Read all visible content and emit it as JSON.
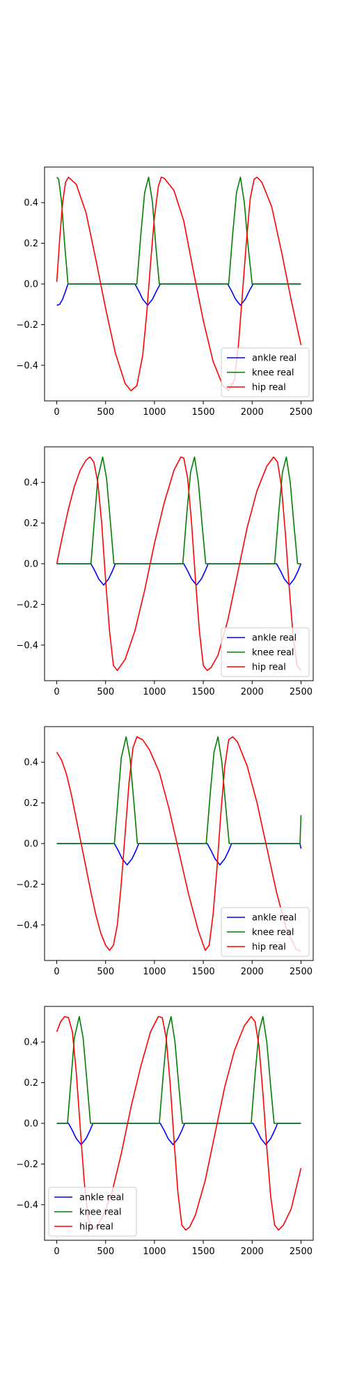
{
  "chart_data": [
    {
      "type": "line",
      "title": "",
      "xlabel": "",
      "ylabel": "",
      "xlim": [
        -125,
        2625
      ],
      "ylim": [
        -0.575,
        0.575
      ],
      "x_ticks": [
        0,
        500,
        1000,
        1500,
        2000,
        2500
      ],
      "y_ticks": [
        -0.4,
        -0.2,
        0.0,
        0.2,
        0.4
      ],
      "grid": false,
      "legend": {
        "placement": "lower right",
        "entries": [
          "ankle real",
          "knee real",
          "hip real"
        ]
      },
      "series": [
        {
          "name": "ankle real",
          "color": "#0000ff",
          "x": [
            0,
            30,
            60,
            90,
            115,
            120,
            800,
            840,
            880,
            930,
            980,
            1020,
            1060,
            1065,
            1750,
            1790,
            1830,
            1880,
            1930,
            1970,
            2010,
            2015,
            2500
          ],
          "y": [
            -0.105,
            -0.1,
            -0.075,
            -0.035,
            0.0,
            0.0,
            0.0,
            -0.035,
            -0.075,
            -0.105,
            -0.075,
            -0.035,
            0.0,
            0.0,
            0.0,
            -0.035,
            -0.075,
            -0.105,
            -0.075,
            -0.035,
            0.0,
            0.0,
            0.0
          ]
        },
        {
          "name": "knee real",
          "color": "#008000",
          "x": [
            0,
            20,
            50,
            80,
            115,
            120,
            820,
            860,
            900,
            940,
            980,
            1015,
            1050,
            1055,
            1760,
            1800,
            1840,
            1880,
            1920,
            1960,
            2000,
            2005,
            2500
          ],
          "y": [
            0.525,
            0.515,
            0.4,
            0.2,
            0.0,
            0.0,
            0.0,
            0.24,
            0.45,
            0.525,
            0.4,
            0.18,
            0.0,
            0.0,
            0.0,
            0.24,
            0.45,
            0.525,
            0.4,
            0.18,
            0.0,
            0.0,
            0.0
          ]
        },
        {
          "name": "hip real",
          "color": "#ff0000",
          "x": [
            0,
            30,
            60,
            90,
            120,
            200,
            300,
            400,
            500,
            600,
            700,
            760,
            820,
            880,
            920,
            960,
            1000,
            1040,
            1070,
            1100,
            1200,
            1300,
            1400,
            1500,
            1600,
            1700,
            1760,
            1820,
            1860,
            1900,
            1940,
            1980,
            2020,
            2050,
            2100,
            2200,
            2300,
            2400,
            2500
          ],
          "y": [
            0.01,
            0.22,
            0.4,
            0.5,
            0.525,
            0.49,
            0.35,
            0.12,
            -0.12,
            -0.34,
            -0.49,
            -0.525,
            -0.5,
            -0.35,
            -0.15,
            0.1,
            0.33,
            0.48,
            0.525,
            0.52,
            0.46,
            0.31,
            0.06,
            -0.18,
            -0.38,
            -0.5,
            -0.525,
            -0.47,
            -0.3,
            -0.05,
            0.2,
            0.42,
            0.515,
            0.525,
            0.5,
            0.38,
            0.16,
            -0.08,
            -0.3
          ]
        }
      ]
    },
    {
      "type": "line",
      "title": "",
      "xlabel": "",
      "ylabel": "",
      "xlim": [
        -125,
        2625
      ],
      "ylim": [
        -0.575,
        0.575
      ],
      "x_ticks": [
        0,
        500,
        1000,
        1500,
        2000,
        2500
      ],
      "y_ticks": [
        -0.4,
        -0.2,
        0.0,
        0.2,
        0.4
      ],
      "grid": false,
      "legend": {
        "placement": "lower right",
        "entries": [
          "ankle real",
          "knee real",
          "hip real"
        ]
      },
      "series": [
        {
          "name": "ankle real",
          "color": "#0000ff",
          "x": [
            0,
            350,
            390,
            430,
            480,
            530,
            570,
            600,
            605,
            1300,
            1340,
            1380,
            1430,
            1480,
            1520,
            1550,
            1555,
            2250,
            2290,
            2330,
            2380,
            2430,
            2470,
            2500
          ],
          "y": [
            0.0,
            0.0,
            -0.035,
            -0.075,
            -0.105,
            -0.075,
            -0.035,
            0.0,
            0.0,
            0.0,
            -0.035,
            -0.075,
            -0.105,
            -0.075,
            -0.035,
            0.0,
            0.0,
            0.0,
            -0.035,
            -0.075,
            -0.105,
            -0.075,
            -0.035,
            0.0
          ]
        },
        {
          "name": "knee real",
          "color": "#008000",
          "x": [
            0,
            350,
            380,
            420,
            470,
            510,
            550,
            585,
            590,
            1290,
            1330,
            1370,
            1410,
            1450,
            1490,
            1525,
            1530,
            2230,
            2270,
            2310,
            2350,
            2390,
            2430,
            2465,
            2470,
            2500
          ],
          "y": [
            0.0,
            0.0,
            0.18,
            0.42,
            0.525,
            0.42,
            0.2,
            0.0,
            0.0,
            0.0,
            0.24,
            0.45,
            0.525,
            0.4,
            0.18,
            0.0,
            0.0,
            0.0,
            0.24,
            0.45,
            0.525,
            0.4,
            0.18,
            0.0,
            0.0,
            0.0
          ]
        },
        {
          "name": "hip real",
          "color": "#ff0000",
          "x": [
            0,
            60,
            120,
            180,
            240,
            300,
            340,
            380,
            420,
            460,
            500,
            540,
            580,
            620,
            700,
            800,
            900,
            1000,
            1100,
            1200,
            1270,
            1300,
            1340,
            1380,
            1420,
            1460,
            1500,
            1540,
            1580,
            1650,
            1750,
            1850,
            1950,
            2050,
            2150,
            2220,
            2260,
            2300,
            2340,
            2380,
            2420,
            2460,
            2500
          ],
          "y": [
            0.0,
            0.14,
            0.27,
            0.38,
            0.46,
            0.51,
            0.525,
            0.5,
            0.4,
            0.2,
            -0.08,
            -0.33,
            -0.5,
            -0.525,
            -0.47,
            -0.33,
            -0.13,
            0.1,
            0.3,
            0.46,
            0.525,
            0.52,
            0.42,
            0.2,
            -0.08,
            -0.33,
            -0.5,
            -0.525,
            -0.51,
            -0.45,
            -0.28,
            -0.05,
            0.18,
            0.36,
            0.48,
            0.525,
            0.5,
            0.38,
            0.15,
            -0.12,
            -0.36,
            -0.5,
            -0.525
          ]
        }
      ]
    },
    {
      "type": "line",
      "title": "",
      "xlabel": "",
      "ylabel": "",
      "xlim": [
        -125,
        2625
      ],
      "ylim": [
        -0.575,
        0.575
      ],
      "x_ticks": [
        0,
        500,
        1000,
        1500,
        2000,
        2500
      ],
      "y_ticks": [
        -0.4,
        -0.2,
        0.0,
        0.2,
        0.4
      ],
      "grid": false,
      "legend": {
        "placement": "lower right",
        "entries": [
          "ankle real",
          "knee real",
          "hip real"
        ]
      },
      "series": [
        {
          "name": "ankle real",
          "color": "#0000ff",
          "x": [
            0,
            590,
            630,
            670,
            720,
            770,
            810,
            840,
            845,
            1540,
            1580,
            1620,
            1670,
            1720,
            1760,
            1790,
            1795,
            2490,
            2500
          ],
          "y": [
            0.0,
            0.0,
            -0.035,
            -0.075,
            -0.105,
            -0.075,
            -0.035,
            0.0,
            0.0,
            0.0,
            -0.035,
            -0.075,
            -0.105,
            -0.075,
            -0.035,
            0.0,
            0.0,
            0.0,
            -0.025
          ]
        },
        {
          "name": "knee real",
          "color": "#008000",
          "x": [
            0,
            590,
            620,
            660,
            710,
            750,
            790,
            825,
            830,
            1530,
            1570,
            1610,
            1650,
            1690,
            1730,
            1765,
            1770,
            2490,
            2500
          ],
          "y": [
            0.0,
            0.0,
            0.18,
            0.42,
            0.525,
            0.42,
            0.2,
            0.0,
            0.0,
            0.0,
            0.24,
            0.45,
            0.525,
            0.4,
            0.18,
            0.0,
            0.0,
            0.0,
            0.14
          ]
        },
        {
          "name": "hip real",
          "color": "#ff0000",
          "x": [
            0,
            50,
            100,
            150,
            200,
            250,
            300,
            350,
            400,
            450,
            500,
            540,
            580,
            620,
            660,
            700,
            740,
            780,
            820,
            880,
            950,
            1050,
            1150,
            1250,
            1350,
            1450,
            1520,
            1560,
            1600,
            1640,
            1680,
            1720,
            1760,
            1800,
            1850,
            1950,
            2050,
            2150,
            2250,
            2350,
            2450,
            2500
          ],
          "y": [
            0.45,
            0.41,
            0.34,
            0.24,
            0.12,
            0.0,
            -0.12,
            -0.24,
            -0.35,
            -0.44,
            -0.5,
            -0.525,
            -0.5,
            -0.4,
            -0.2,
            0.05,
            0.3,
            0.47,
            0.525,
            0.51,
            0.46,
            0.35,
            0.17,
            -0.04,
            -0.25,
            -0.43,
            -0.525,
            -0.5,
            -0.35,
            -0.12,
            0.15,
            0.38,
            0.51,
            0.525,
            0.5,
            0.38,
            0.2,
            -0.02,
            -0.24,
            -0.42,
            -0.52,
            -0.53
          ]
        }
      ]
    },
    {
      "type": "line",
      "title": "",
      "xlabel": "",
      "ylabel": "",
      "xlim": [
        -125,
        2625
      ],
      "ylim": [
        -0.575,
        0.575
      ],
      "x_ticks": [
        0,
        500,
        1000,
        1500,
        2000,
        2500
      ],
      "y_ticks": [
        -0.4,
        -0.2,
        0.0,
        0.2,
        0.4
      ],
      "grid": false,
      "legend": {
        "placement": "lower left",
        "entries": [
          "ankle real",
          "knee real",
          "hip real"
        ]
      },
      "series": [
        {
          "name": "ankle real",
          "color": "#0000ff",
          "x": [
            0,
            120,
            160,
            200,
            250,
            300,
            340,
            370,
            375,
            1060,
            1100,
            1140,
            1190,
            1240,
            1280,
            1310,
            1315,
            2010,
            2050,
            2090,
            2140,
            2190,
            2230,
            2260,
            2265,
            2500
          ],
          "y": [
            0.0,
            0.0,
            -0.035,
            -0.075,
            -0.105,
            -0.075,
            -0.035,
            0.0,
            0.0,
            0.0,
            -0.035,
            -0.075,
            -0.105,
            -0.075,
            -0.035,
            0.0,
            0.0,
            0.0,
            -0.035,
            -0.075,
            -0.105,
            -0.075,
            -0.035,
            0.0,
            0.0,
            0.0
          ]
        },
        {
          "name": "knee real",
          "color": "#008000",
          "x": [
            0,
            110,
            140,
            180,
            230,
            270,
            310,
            345,
            350,
            1050,
            1090,
            1130,
            1170,
            1210,
            1250,
            1285,
            1290,
            1990,
            2030,
            2070,
            2110,
            2150,
            2190,
            2225,
            2230,
            2500
          ],
          "y": [
            0.0,
            0.0,
            0.18,
            0.42,
            0.525,
            0.42,
            0.2,
            0.0,
            0.0,
            0.0,
            0.24,
            0.45,
            0.525,
            0.4,
            0.18,
            0.0,
            0.0,
            0.0,
            0.24,
            0.45,
            0.525,
            0.4,
            0.18,
            0.0,
            0.0,
            0.0
          ]
        },
        {
          "name": "hip real",
          "color": "#ff0000",
          "x": [
            0,
            40,
            80,
            120,
            160,
            200,
            240,
            280,
            320,
            360,
            400,
            460,
            560,
            660,
            760,
            860,
            960,
            1040,
            1080,
            1120,
            1160,
            1200,
            1240,
            1280,
            1320,
            1360,
            1420,
            1520,
            1620,
            1720,
            1820,
            1920,
            1990,
            2030,
            2070,
            2110,
            2150,
            2190,
            2230,
            2270,
            2320,
            2400,
            2500
          ],
          "y": [
            0.45,
            0.5,
            0.525,
            0.52,
            0.45,
            0.25,
            -0.02,
            -0.28,
            -0.46,
            -0.525,
            -0.51,
            -0.47,
            -0.35,
            -0.15,
            0.08,
            0.28,
            0.45,
            0.525,
            0.52,
            0.42,
            0.2,
            -0.08,
            -0.34,
            -0.5,
            -0.525,
            -0.51,
            -0.45,
            -0.28,
            -0.05,
            0.18,
            0.36,
            0.48,
            0.525,
            0.5,
            0.38,
            0.15,
            -0.12,
            -0.36,
            -0.5,
            -0.525,
            -0.5,
            -0.42,
            -0.22
          ]
        }
      ]
    }
  ]
}
